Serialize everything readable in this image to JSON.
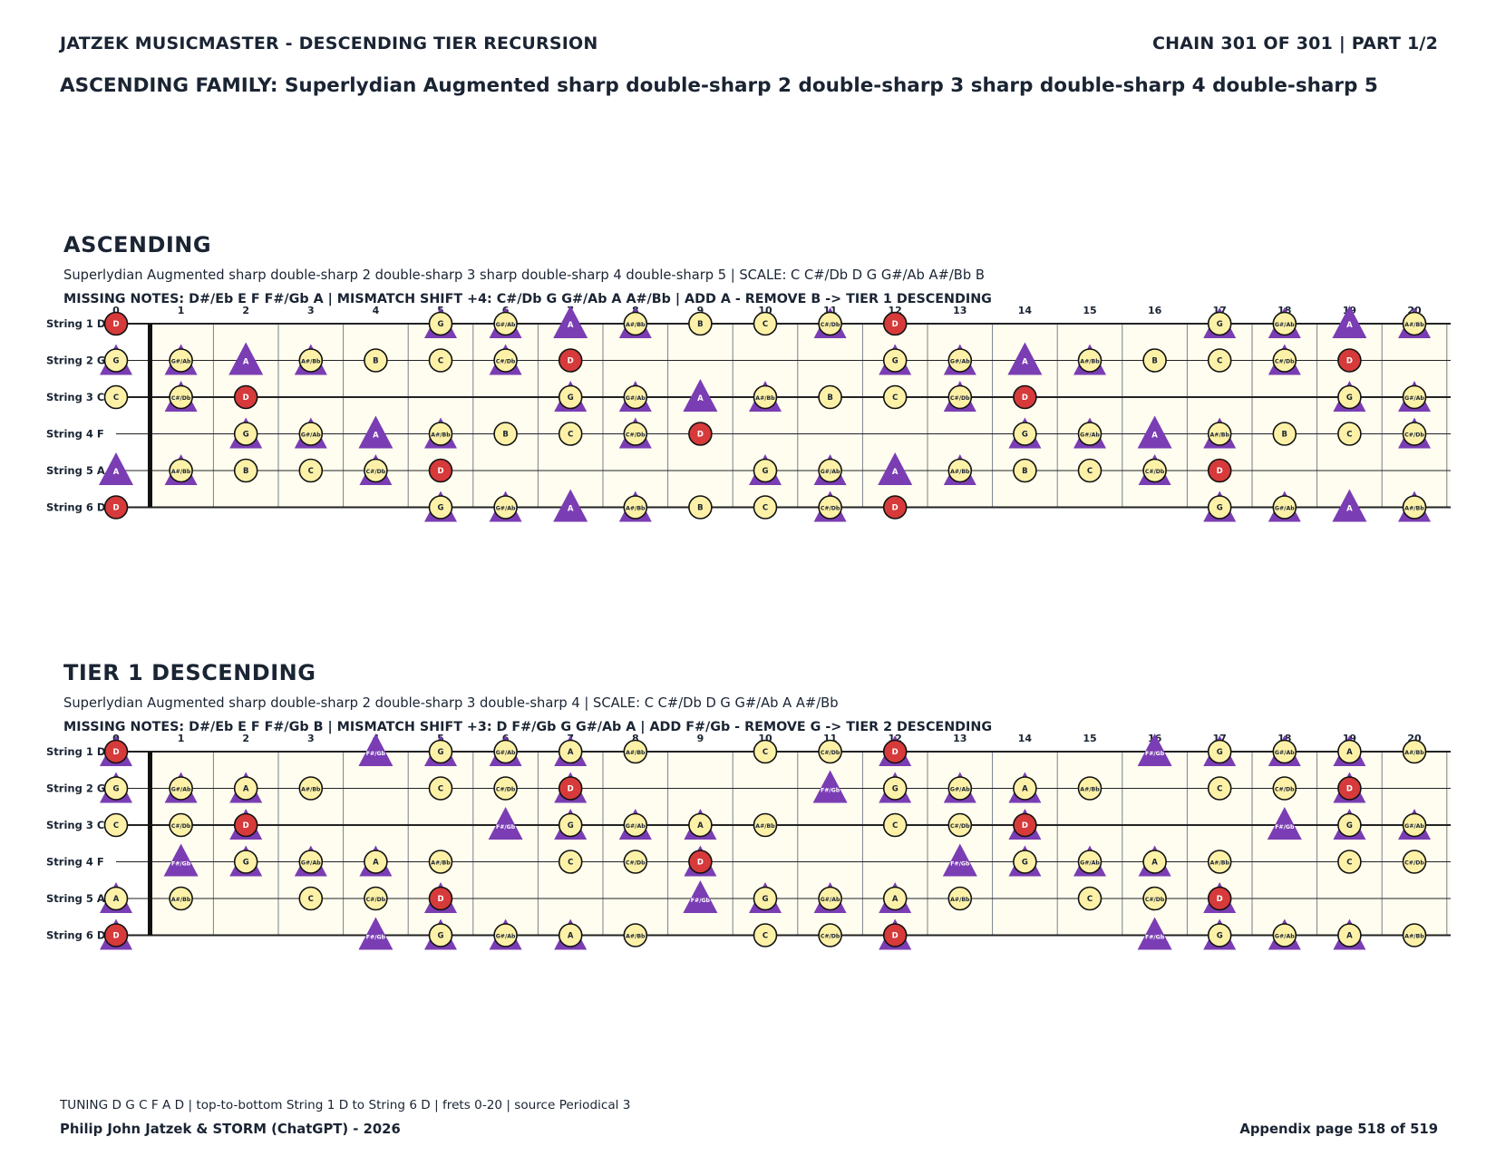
{
  "header": {
    "title": "JATZEK MUSICMASTER - DESCENDING TIER RECURSION",
    "chain": "CHAIN 301 OF 301  |  PART 1/2",
    "family": "ASCENDING FAMILY: Superlydian Augmented sharp double-sharp 2 double-sharp 3 sharp double-sharp 4 double-sharp 5"
  },
  "colors": {
    "note_fill": "#fdf1a8",
    "root_fill": "#d63a3a",
    "triangle": "#7a3db3",
    "board_bg": "#fffdf0",
    "text": "#1a2433"
  },
  "fret_numbers": [
    "0",
    "1",
    "2",
    "3",
    "4",
    "5",
    "6",
    "7",
    "8",
    "9",
    "10",
    "11",
    "12",
    "13",
    "14",
    "15",
    "16",
    "17",
    "18",
    "19",
    "20"
  ],
  "string_labels": [
    "String 1 D",
    "String 2 G",
    "String 3 C",
    "String 4 F",
    "String 5 A",
    "String 6 D"
  ],
  "sections": [
    {
      "title": "ASCENDING",
      "subtitle": "Superlydian Augmented sharp double-sharp 2 double-sharp 3 sharp double-sharp 4 double-sharp 5  |  SCALE: C C#/Db D G G#/Ab A#/Bb B",
      "missing": "MISSING NOTES: D#/Eb E F F#/Gb A  |  MISMATCH SHIFT +4: C#/Db G G#/Ab A A#/Bb  |  ADD A - REMOVE B -> TIER 1 DESCENDING",
      "strings": [
        {
          "open": "D",
          "notes": [
            [
              "D",
              "c",
              "r"
            ],
            [
              "G",
              "b"
            ],
            [
              "G#/Ab",
              "b"
            ],
            [
              "A",
              "t"
            ],
            [
              "A#/Bb",
              "b"
            ],
            [
              "B",
              "c"
            ],
            [
              "C",
              "c"
            ],
            [
              "C#/Db",
              "b"
            ],
            [
              "D",
              "c",
              "r"
            ],
            [
              "G",
              "b"
            ],
            [
              "G#/Ab",
              "b"
            ],
            [
              "A",
              "t"
            ],
            [
              "A#/Bb",
              "b"
            ]
          ],
          "frets": [
            0,
            5,
            6,
            7,
            8,
            9,
            10,
            11,
            12,
            17,
            18,
            19,
            20
          ]
        },
        {
          "open": "G",
          "notes": [
            [
              "G",
              "b"
            ],
            [
              "G#/Ab",
              "b"
            ],
            [
              "A",
              "t"
            ],
            [
              "A#/Bb",
              "b"
            ],
            [
              "B",
              "c"
            ],
            [
              "C",
              "c"
            ],
            [
              "C#/Db",
              "b"
            ],
            [
              "D",
              "c",
              "r"
            ],
            [
              "G",
              "b"
            ],
            [
              "G#/Ab",
              "b"
            ],
            [
              "A",
              "t"
            ],
            [
              "A#/Bb",
              "b"
            ],
            [
              "B",
              "c"
            ],
            [
              "C",
              "c"
            ],
            [
              "C#/Db",
              "b"
            ],
            [
              "D",
              "c",
              "r"
            ]
          ],
          "frets": [
            0,
            1,
            2,
            3,
            4,
            5,
            6,
            7,
            12,
            13,
            14,
            15,
            16,
            17,
            18,
            19
          ]
        },
        {
          "open": "C",
          "notes": [
            [
              "C",
              "c"
            ],
            [
              "C#/Db",
              "b"
            ],
            [
              "D",
              "c",
              "r"
            ],
            [
              "G",
              "b"
            ],
            [
              "G#/Ab",
              "b"
            ],
            [
              "A",
              "t"
            ],
            [
              "A#/Bb",
              "b"
            ],
            [
              "B",
              "c"
            ],
            [
              "C",
              "c"
            ],
            [
              "C#/Db",
              "b"
            ],
            [
              "D",
              "c",
              "r"
            ],
            [
              "G",
              "b"
            ],
            [
              "G#/Ab",
              "b"
            ]
          ],
          "frets": [
            0,
            1,
            2,
            7,
            8,
            9,
            10,
            11,
            12,
            13,
            14,
            19,
            20
          ]
        },
        {
          "open": "F",
          "notes": [
            [
              "G",
              "b"
            ],
            [
              "G#/Ab",
              "b"
            ],
            [
              "A",
              "t"
            ],
            [
              "A#/Bb",
              "b"
            ],
            [
              "B",
              "c"
            ],
            [
              "C",
              "c"
            ],
            [
              "C#/Db",
              "b"
            ],
            [
              "D",
              "c",
              "r"
            ],
            [
              "G",
              "b"
            ],
            [
              "G#/Ab",
              "b"
            ],
            [
              "A",
              "t"
            ],
            [
              "A#/Bb",
              "b"
            ],
            [
              "B",
              "c"
            ],
            [
              "C",
              "c"
            ],
            [
              "C#/Db",
              "b"
            ]
          ],
          "frets": [
            2,
            3,
            4,
            5,
            6,
            7,
            8,
            9,
            14,
            15,
            16,
            17,
            18,
            19,
            20
          ]
        },
        {
          "open": "A",
          "notes": [
            [
              "A",
              "t"
            ],
            [
              "A#/Bb",
              "b"
            ],
            [
              "B",
              "c"
            ],
            [
              "C",
              "c"
            ],
            [
              "C#/Db",
              "b"
            ],
            [
              "D",
              "c",
              "r"
            ],
            [
              "G",
              "b"
            ],
            [
              "G#/Ab",
              "b"
            ],
            [
              "A",
              "t"
            ],
            [
              "A#/Bb",
              "b"
            ],
            [
              "B",
              "c"
            ],
            [
              "C",
              "c"
            ],
            [
              "C#/Db",
              "b"
            ],
            [
              "D",
              "c",
              "r"
            ]
          ],
          "frets": [
            0,
            1,
            2,
            3,
            4,
            5,
            10,
            11,
            12,
            13,
            14,
            15,
            16,
            17
          ]
        },
        {
          "open": "D",
          "notes": [
            [
              "D",
              "c",
              "r"
            ],
            [
              "G",
              "b"
            ],
            [
              "G#/Ab",
              "b"
            ],
            [
              "A",
              "t"
            ],
            [
              "A#/Bb",
              "b"
            ],
            [
              "B",
              "c"
            ],
            [
              "C",
              "c"
            ],
            [
              "C#/Db",
              "b"
            ],
            [
              "D",
              "c",
              "r"
            ],
            [
              "G",
              "b"
            ],
            [
              "G#/Ab",
              "b"
            ],
            [
              "A",
              "t"
            ],
            [
              "A#/Bb",
              "b"
            ]
          ],
          "frets": [
            0,
            5,
            6,
            7,
            8,
            9,
            10,
            11,
            12,
            17,
            18,
            19,
            20
          ]
        }
      ]
    },
    {
      "title": "TIER 1 DESCENDING",
      "subtitle": "Superlydian Augmented sharp double-sharp 2 double-sharp 3 double-sharp 4  |  SCALE: C C#/Db D G G#/Ab A A#/Bb",
      "missing": "MISSING NOTES: D#/Eb E F F#/Gb B  |  MISMATCH SHIFT +3: D F#/Gb G G#/Ab A  |  ADD F#/Gb - REMOVE G -> TIER 2 DESCENDING",
      "strings": [
        {
          "open": "D",
          "notes": [
            [
              "D",
              "c",
              "r",
              "t"
            ],
            [
              "F#/Gb",
              "t"
            ],
            [
              "G",
              "b"
            ],
            [
              "G#/Ab",
              "b"
            ],
            [
              "A",
              "b"
            ],
            [
              "A#/Bb",
              "c"
            ],
            [
              "C",
              "c"
            ],
            [
              "C#/Db",
              "c"
            ],
            [
              "D",
              "c",
              "r",
              "t"
            ],
            [
              "F#/Gb",
              "t"
            ],
            [
              "G",
              "b"
            ],
            [
              "G#/Ab",
              "b"
            ],
            [
              "A",
              "b"
            ],
            [
              "A#/Bb",
              "c"
            ]
          ],
          "frets": [
            0,
            4,
            5,
            6,
            7,
            8,
            10,
            11,
            12,
            16,
            17,
            18,
            19,
            20
          ]
        },
        {
          "open": "G",
          "notes": [
            [
              "G",
              "b"
            ],
            [
              "G#/Ab",
              "b"
            ],
            [
              "A",
              "b"
            ],
            [
              "A#/Bb",
              "c"
            ],
            [
              "C",
              "c"
            ],
            [
              "C#/Db",
              "c"
            ],
            [
              "D",
              "c",
              "r",
              "t"
            ],
            [
              "F#/Gb",
              "t"
            ],
            [
              "G",
              "b"
            ],
            [
              "G#/Ab",
              "b"
            ],
            [
              "A",
              "b"
            ],
            [
              "A#/Bb",
              "c"
            ],
            [
              "C",
              "c"
            ],
            [
              "C#/Db",
              "c"
            ],
            [
              "D",
              "c",
              "r",
              "t"
            ]
          ],
          "frets": [
            0,
            1,
            2,
            3,
            5,
            6,
            7,
            11,
            12,
            13,
            14,
            15,
            17,
            18,
            19
          ]
        },
        {
          "open": "C",
          "notes": [
            [
              "C",
              "c"
            ],
            [
              "C#/Db",
              "c"
            ],
            [
              "D",
              "c",
              "r",
              "t"
            ],
            [
              "F#/Gb",
              "t"
            ],
            [
              "G",
              "b"
            ],
            [
              "G#/Ab",
              "b"
            ],
            [
              "A",
              "b"
            ],
            [
              "A#/Bb",
              "c"
            ],
            [
              "C",
              "c"
            ],
            [
              "C#/Db",
              "c"
            ],
            [
              "D",
              "c",
              "r",
              "t"
            ],
            [
              "F#/Gb",
              "t"
            ],
            [
              "G",
              "b"
            ],
            [
              "G#/Ab",
              "b"
            ]
          ],
          "frets": [
            0,
            1,
            2,
            6,
            7,
            8,
            9,
            10,
            12,
            13,
            14,
            18,
            19,
            20
          ]
        },
        {
          "open": "F",
          "notes": [
            [
              "F#/Gb",
              "t"
            ],
            [
              "G",
              "b"
            ],
            [
              "G#/Ab",
              "b"
            ],
            [
              "A",
              "b"
            ],
            [
              "A#/Bb",
              "c"
            ],
            [
              "C",
              "c"
            ],
            [
              "C#/Db",
              "c"
            ],
            [
              "D",
              "c",
              "r",
              "t"
            ],
            [
              "F#/Gb",
              "t"
            ],
            [
              "G",
              "b"
            ],
            [
              "G#/Ab",
              "b"
            ],
            [
              "A",
              "b"
            ],
            [
              "A#/Bb",
              "c"
            ],
            [
              "C",
              "c"
            ],
            [
              "C#/Db",
              "c"
            ]
          ],
          "frets": [
            1,
            2,
            3,
            4,
            5,
            7,
            8,
            9,
            13,
            14,
            15,
            16,
            17,
            19,
            20
          ]
        },
        {
          "open": "A",
          "notes": [
            [
              "A",
              "b"
            ],
            [
              "A#/Bb",
              "c"
            ],
            [
              "C",
              "c"
            ],
            [
              "C#/Db",
              "c"
            ],
            [
              "D",
              "c",
              "r",
              "t"
            ],
            [
              "F#/Gb",
              "t"
            ],
            [
              "G",
              "b"
            ],
            [
              "G#/Ab",
              "b"
            ],
            [
              "A",
              "b"
            ],
            [
              "A#/Bb",
              "c"
            ],
            [
              "C",
              "c"
            ],
            [
              "C#/Db",
              "c"
            ],
            [
              "D",
              "c",
              "r",
              "t"
            ]
          ],
          "frets": [
            0,
            1,
            3,
            4,
            5,
            9,
            10,
            11,
            12,
            13,
            15,
            16,
            17
          ]
        },
        {
          "open": "D",
          "notes": [
            [
              "D",
              "c",
              "r",
              "t"
            ],
            [
              "F#/Gb",
              "t"
            ],
            [
              "G",
              "b"
            ],
            [
              "G#/Ab",
              "b"
            ],
            [
              "A",
              "b"
            ],
            [
              "A#/Bb",
              "c"
            ],
            [
              "C",
              "c"
            ],
            [
              "C#/Db",
              "c"
            ],
            [
              "D",
              "c",
              "r",
              "t"
            ],
            [
              "F#/Gb",
              "t"
            ],
            [
              "G",
              "b"
            ],
            [
              "G#/Ab",
              "b"
            ],
            [
              "A",
              "b"
            ],
            [
              "A#/Bb",
              "c"
            ]
          ],
          "frets": [
            0,
            4,
            5,
            6,
            7,
            8,
            10,
            11,
            12,
            16,
            17,
            18,
            19,
            20
          ]
        }
      ]
    }
  ],
  "footer": {
    "tuning": "TUNING D G C F A D | top-to-bottom String 1 D to String 6 D | frets 0-20 | source Periodical 3",
    "credit": "Philip John Jatzek & STORM (ChatGPT) - 2026",
    "page": "Appendix page 518 of 519"
  }
}
